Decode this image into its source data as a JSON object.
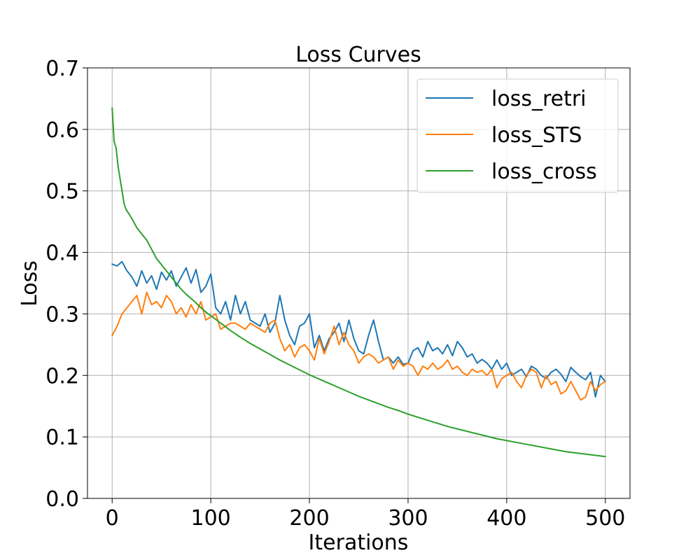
{
  "chart_data": {
    "type": "line",
    "title": "Loss Curves",
    "xlabel": "Iterations",
    "ylabel": "Loss",
    "xlim": [
      -25,
      525
    ],
    "ylim": [
      0.0,
      0.7
    ],
    "xticks": [
      0,
      100,
      200,
      300,
      400,
      500
    ],
    "yticks": [
      0.0,
      0.1,
      0.2,
      0.3,
      0.4,
      0.5,
      0.6,
      0.7
    ],
    "xtick_labels": [
      "0",
      "100",
      "200",
      "300",
      "400",
      "500"
    ],
    "ytick_labels": [
      "0.0",
      "0.1",
      "0.2",
      "0.3",
      "0.4",
      "0.5",
      "0.6",
      "0.7"
    ],
    "grid": true,
    "legend_position": "top-right",
    "series": [
      {
        "name": "loss_retri",
        "color": "#1f77b4",
        "x": [
          0,
          5,
          10,
          15,
          20,
          25,
          30,
          35,
          40,
          45,
          50,
          55,
          60,
          65,
          70,
          75,
          80,
          85,
          90,
          95,
          100,
          105,
          110,
          115,
          120,
          125,
          130,
          135,
          140,
          145,
          150,
          155,
          160,
          165,
          170,
          175,
          180,
          185,
          190,
          195,
          200,
          205,
          210,
          215,
          220,
          225,
          230,
          235,
          240,
          245,
          250,
          255,
          260,
          265,
          270,
          275,
          280,
          285,
          290,
          295,
          300,
          305,
          310,
          315,
          320,
          325,
          330,
          335,
          340,
          345,
          350,
          355,
          360,
          365,
          370,
          375,
          380,
          385,
          390,
          395,
          400,
          405,
          410,
          415,
          420,
          425,
          430,
          435,
          440,
          445,
          450,
          455,
          460,
          465,
          470,
          475,
          480,
          485,
          490,
          495,
          500
        ],
        "values": [
          0.381,
          0.378,
          0.385,
          0.37,
          0.36,
          0.345,
          0.37,
          0.35,
          0.362,
          0.34,
          0.368,
          0.355,
          0.37,
          0.345,
          0.36,
          0.375,
          0.35,
          0.372,
          0.335,
          0.345,
          0.365,
          0.31,
          0.3,
          0.32,
          0.29,
          0.33,
          0.3,
          0.32,
          0.29,
          0.285,
          0.28,
          0.3,
          0.27,
          0.285,
          0.33,
          0.29,
          0.265,
          0.25,
          0.28,
          0.285,
          0.3,
          0.245,
          0.265,
          0.24,
          0.26,
          0.27,
          0.285,
          0.255,
          0.29,
          0.26,
          0.24,
          0.235,
          0.265,
          0.29,
          0.255,
          0.225,
          0.23,
          0.22,
          0.23,
          0.218,
          0.22,
          0.24,
          0.245,
          0.23,
          0.255,
          0.24,
          0.245,
          0.235,
          0.25,
          0.232,
          0.255,
          0.245,
          0.23,
          0.235,
          0.22,
          0.226,
          0.22,
          0.21,
          0.225,
          0.21,
          0.22,
          0.2,
          0.205,
          0.21,
          0.198,
          0.215,
          0.21,
          0.2,
          0.195,
          0.205,
          0.21,
          0.202,
          0.19,
          0.213,
          0.205,
          0.198,
          0.193,
          0.205,
          0.165,
          0.2,
          0.19
        ]
      },
      {
        "name": "loss_STS",
        "color": "#ff7f0e",
        "x": [
          0,
          5,
          10,
          15,
          20,
          25,
          30,
          35,
          40,
          45,
          50,
          55,
          60,
          65,
          70,
          75,
          80,
          85,
          90,
          95,
          100,
          105,
          110,
          115,
          120,
          125,
          130,
          135,
          140,
          145,
          150,
          155,
          160,
          165,
          170,
          175,
          180,
          185,
          190,
          195,
          200,
          205,
          210,
          215,
          220,
          225,
          230,
          235,
          240,
          245,
          250,
          255,
          260,
          265,
          270,
          275,
          280,
          285,
          290,
          295,
          300,
          305,
          310,
          315,
          320,
          325,
          330,
          335,
          340,
          345,
          350,
          355,
          360,
          365,
          370,
          375,
          380,
          385,
          390,
          395,
          400,
          405,
          410,
          415,
          420,
          425,
          430,
          435,
          440,
          445,
          450,
          455,
          460,
          465,
          470,
          475,
          480,
          485,
          490,
          495,
          500
        ],
        "values": [
          0.265,
          0.28,
          0.3,
          0.31,
          0.32,
          0.33,
          0.3,
          0.335,
          0.315,
          0.32,
          0.31,
          0.33,
          0.32,
          0.3,
          0.31,
          0.295,
          0.315,
          0.3,
          0.32,
          0.29,
          0.295,
          0.3,
          0.275,
          0.28,
          0.285,
          0.285,
          0.28,
          0.275,
          0.285,
          0.28,
          0.275,
          0.27,
          0.285,
          0.29,
          0.26,
          0.24,
          0.25,
          0.23,
          0.245,
          0.25,
          0.24,
          0.225,
          0.26,
          0.235,
          0.255,
          0.28,
          0.25,
          0.27,
          0.25,
          0.24,
          0.22,
          0.23,
          0.235,
          0.23,
          0.22,
          0.225,
          0.23,
          0.21,
          0.225,
          0.215,
          0.22,
          0.215,
          0.2,
          0.215,
          0.21,
          0.22,
          0.21,
          0.215,
          0.225,
          0.21,
          0.215,
          0.205,
          0.2,
          0.21,
          0.205,
          0.208,
          0.2,
          0.21,
          0.18,
          0.195,
          0.2,
          0.205,
          0.19,
          0.18,
          0.2,
          0.21,
          0.205,
          0.18,
          0.2,
          0.185,
          0.19,
          0.17,
          0.175,
          0.19,
          0.175,
          0.16,
          0.165,
          0.19,
          0.175,
          0.185,
          0.19
        ]
      },
      {
        "name": "loss_cross",
        "color": "#2ca02c",
        "x": [
          0,
          2,
          4,
          6,
          8,
          10,
          12,
          14,
          16,
          18,
          20,
          25,
          30,
          35,
          40,
          45,
          50,
          55,
          60,
          65,
          70,
          75,
          80,
          85,
          90,
          95,
          100,
          110,
          120,
          130,
          140,
          150,
          160,
          170,
          180,
          190,
          200,
          210,
          220,
          230,
          240,
          250,
          260,
          270,
          280,
          290,
          300,
          310,
          320,
          330,
          340,
          350,
          360,
          370,
          380,
          390,
          400,
          410,
          420,
          430,
          440,
          450,
          460,
          470,
          480,
          490,
          500
        ],
        "values": [
          0.635,
          0.58,
          0.57,
          0.54,
          0.52,
          0.5,
          0.48,
          0.47,
          0.465,
          0.46,
          0.455,
          0.44,
          0.43,
          0.42,
          0.405,
          0.39,
          0.38,
          0.37,
          0.36,
          0.35,
          0.34,
          0.332,
          0.325,
          0.318,
          0.31,
          0.303,
          0.297,
          0.285,
          0.273,
          0.262,
          0.252,
          0.243,
          0.234,
          0.225,
          0.217,
          0.209,
          0.201,
          0.194,
          0.187,
          0.18,
          0.173,
          0.166,
          0.16,
          0.154,
          0.148,
          0.143,
          0.137,
          0.132,
          0.127,
          0.122,
          0.117,
          0.113,
          0.109,
          0.105,
          0.101,
          0.097,
          0.094,
          0.091,
          0.088,
          0.085,
          0.082,
          0.079,
          0.076,
          0.074,
          0.072,
          0.07,
          0.068
        ]
      }
    ]
  }
}
